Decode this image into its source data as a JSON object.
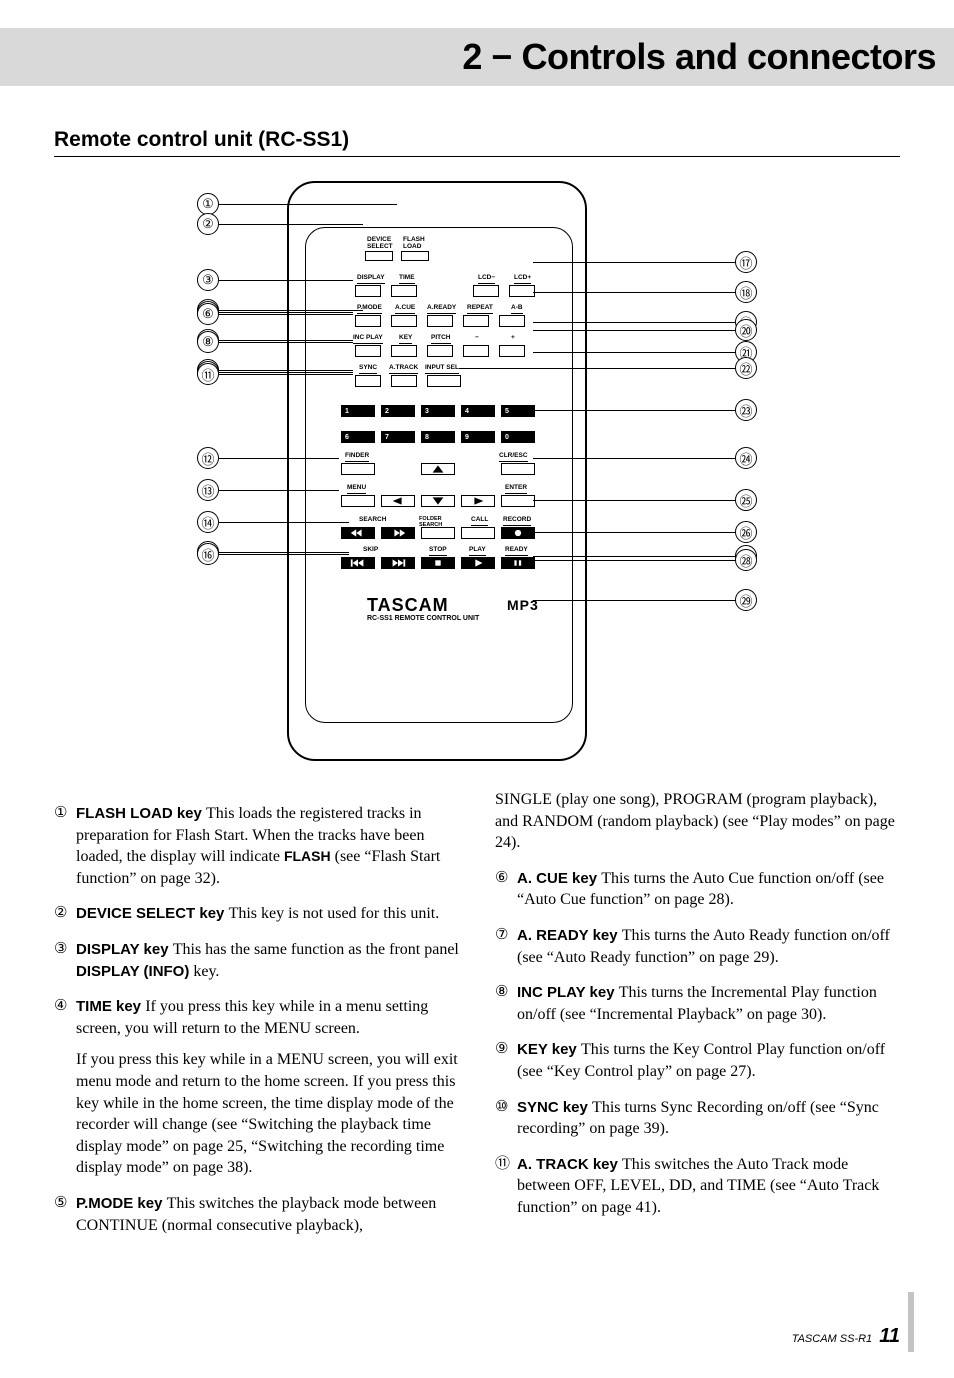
{
  "header": {
    "chapter": "2 − Controls and connectors"
  },
  "section": {
    "title": "Remote control unit (RC-SS1)"
  },
  "remote": {
    "rows": {
      "top": [
        {
          "l": "DEVICE\nSELECT"
        },
        {
          "l": "FLASH\nLOAD"
        }
      ],
      "r1": [
        {
          "l": "DISPLAY"
        },
        {
          "l": "TIME"
        },
        {
          "l": "LCD−"
        },
        {
          "l": "LCD+"
        }
      ],
      "r2": [
        {
          "l": "P.MODE"
        },
        {
          "l": "A.CUE"
        },
        {
          "l": "A.READY"
        },
        {
          "l": "REPEAT"
        },
        {
          "l": "A-B"
        }
      ],
      "r3": [
        {
          "l": "INC PLAY"
        },
        {
          "l": "KEY"
        },
        {
          "l": "PITCH"
        },
        {
          "l": "−"
        },
        {
          "l": "+"
        }
      ],
      "r4": [
        {
          "l": "SYNC"
        },
        {
          "l": "A.TRACK"
        },
        {
          "l": "INPUT SEL"
        }
      ],
      "num1": [
        "1",
        "2",
        "3",
        "4",
        "5"
      ],
      "num2": [
        "6",
        "7",
        "8",
        "9",
        "0"
      ],
      "r5": [
        {
          "l": "FINDER"
        },
        {
          "l": "CLR/ESC"
        }
      ],
      "r6": [
        {
          "l": "MENU"
        },
        {
          "l": "ENTER"
        }
      ],
      "r7": [
        {
          "l": "SEARCH"
        },
        {
          "l": "FOLDER\nSEARCH"
        },
        {
          "l": "CALL"
        },
        {
          "l": "RECORD"
        }
      ],
      "r8": [
        {
          "l": "SKIP"
        },
        {
          "l": "STOP"
        },
        {
          "l": "PLAY"
        },
        {
          "l": "READY"
        }
      ]
    },
    "brand": "TASCAM",
    "mp3": "MP3",
    "sub": "RC-SS1 REMOTE CONTROL UNIT"
  },
  "callouts": {
    "left": [
      "①",
      "②",
      "③",
      "④",
      "⑤",
      "⑥",
      "⑦",
      "⑧",
      "⑨",
      "⑩",
      "⑪",
      "⑫",
      "⑬",
      "⑭",
      "⑮",
      "⑯"
    ],
    "right": [
      "⑰",
      "⑱",
      "⑲",
      "⑳",
      "㉑",
      "㉒",
      "㉓",
      "㉔",
      "㉕",
      "㉖",
      "㉗",
      "㉘",
      "㉙"
    ]
  },
  "descriptions": {
    "left": [
      {
        "n": "①",
        "k": "FLASH LOAD key",
        "t": "This loads the registered tracks in preparation for Flash Start. When the tracks have been loaded, the display will indicate ",
        "flash": "FLASH",
        "t2": " (see “Flash Start function” on page 32)."
      },
      {
        "n": "②",
        "k": "DEVICE SELECT key",
        "t": "This key is not used for this unit."
      },
      {
        "n": "③",
        "k": "DISPLAY key",
        "t": "This has the same function as the front panel ",
        "bold": "DISPLAY (INFO)",
        "t2": " key."
      },
      {
        "n": "④",
        "k": "TIME key",
        "t": "If you press this key while in a menu setting screen, you will return to the MENU screen.",
        "p2": "If you press this key while in a MENU screen, you will exit menu mode and return to the home screen. If you press this key while in the home screen, the time display mode of the recorder will change (see “Switching the playback time display mode” on page 25, “Switching the recording time display mode” on page 38)."
      },
      {
        "n": "⑤",
        "k": "P.MODE key",
        "t": "This switches the playback mode between CONTINUE (normal consecutive playback),"
      }
    ],
    "right": [
      {
        "cont": "SINGLE (play one song), PROGRAM (program playback), and RANDOM (random playback) (see “Play modes” on page 24)."
      },
      {
        "n": "⑥",
        "k": "A. CUE key",
        "t": "This turns the Auto Cue function on/off (see “Auto Cue function” on page 28)."
      },
      {
        "n": "⑦",
        "k": "A. READY key",
        "t": "This turns the Auto Ready function on/off (see “Auto Ready function” on page 29)."
      },
      {
        "n": "⑧",
        "k": "INC PLAY key",
        "t": "This turns the Incremental Play function on/off (see “Incremental Playback” on page 30)."
      },
      {
        "n": "⑨",
        "k": "KEY key",
        "t": "This turns the Key Control Play function on/off (see “Key Control play” on page 27)."
      },
      {
        "n": "⑩",
        "k": "SYNC key",
        "t": "This turns Sync Recording on/off (see “Sync recording” on page 39)."
      },
      {
        "n": "⑪",
        "k": "A. TRACK key",
        "t": "This switches the Auto Track mode between OFF, LEVEL, DD, and TIME (see “Auto Track function” on page 41)."
      }
    ]
  },
  "footer": {
    "model": "TASCAM  SS-R1",
    "page": "11"
  }
}
